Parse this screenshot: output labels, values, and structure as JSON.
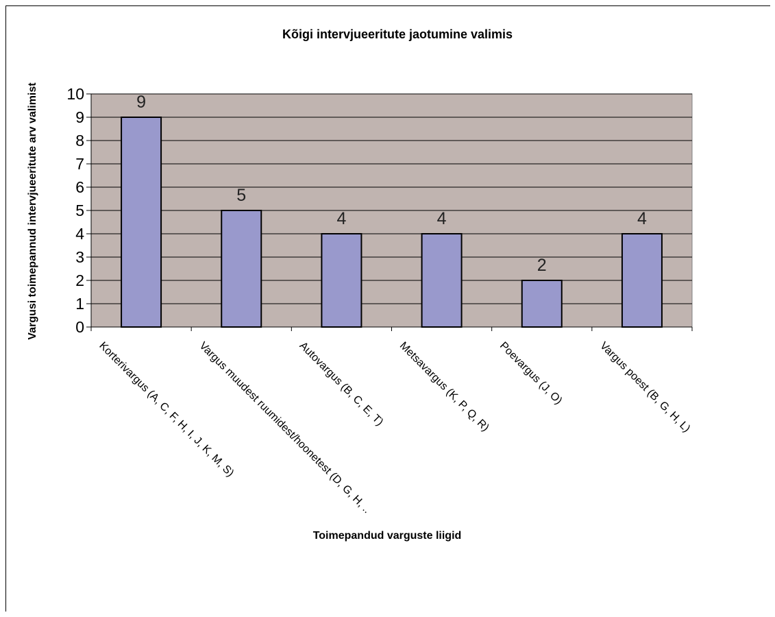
{
  "chart_data": {
    "type": "bar",
    "title": "Kõigi intervjueeritute jaotumine valimis",
    "xlabel": "Toimepandud varguste liigid",
    "ylabel": "Vargusi toimepannud intervjueeritute arv valimist",
    "categories": [
      "Korterivargus (A, C, F, H, I, J, K, M, S)",
      "Vargus muudest ruumidest/hoonetest (D, G, H, ..",
      "Autovargus (B, C, E, T)",
      "Metsavargus (K, P, Q, R)",
      "Poevargus (J, O)",
      "Vargus poest (B, G, H, L)"
    ],
    "values": [
      9,
      5,
      4,
      4,
      2,
      4
    ],
    "data_labels": [
      "9",
      "5",
      "4",
      "4",
      "2",
      "4"
    ],
    "ylim": [
      0,
      10
    ],
    "yticks": [
      "0",
      "1",
      "2",
      "3",
      "4",
      "5",
      "6",
      "7",
      "8",
      "9",
      "10"
    ],
    "grid": true,
    "legend": "none",
    "colors": {
      "bar": "#9999cc",
      "bar_edge": "#000000",
      "plot_bg": "#c0b4b0",
      "grid": "#000000"
    }
  }
}
